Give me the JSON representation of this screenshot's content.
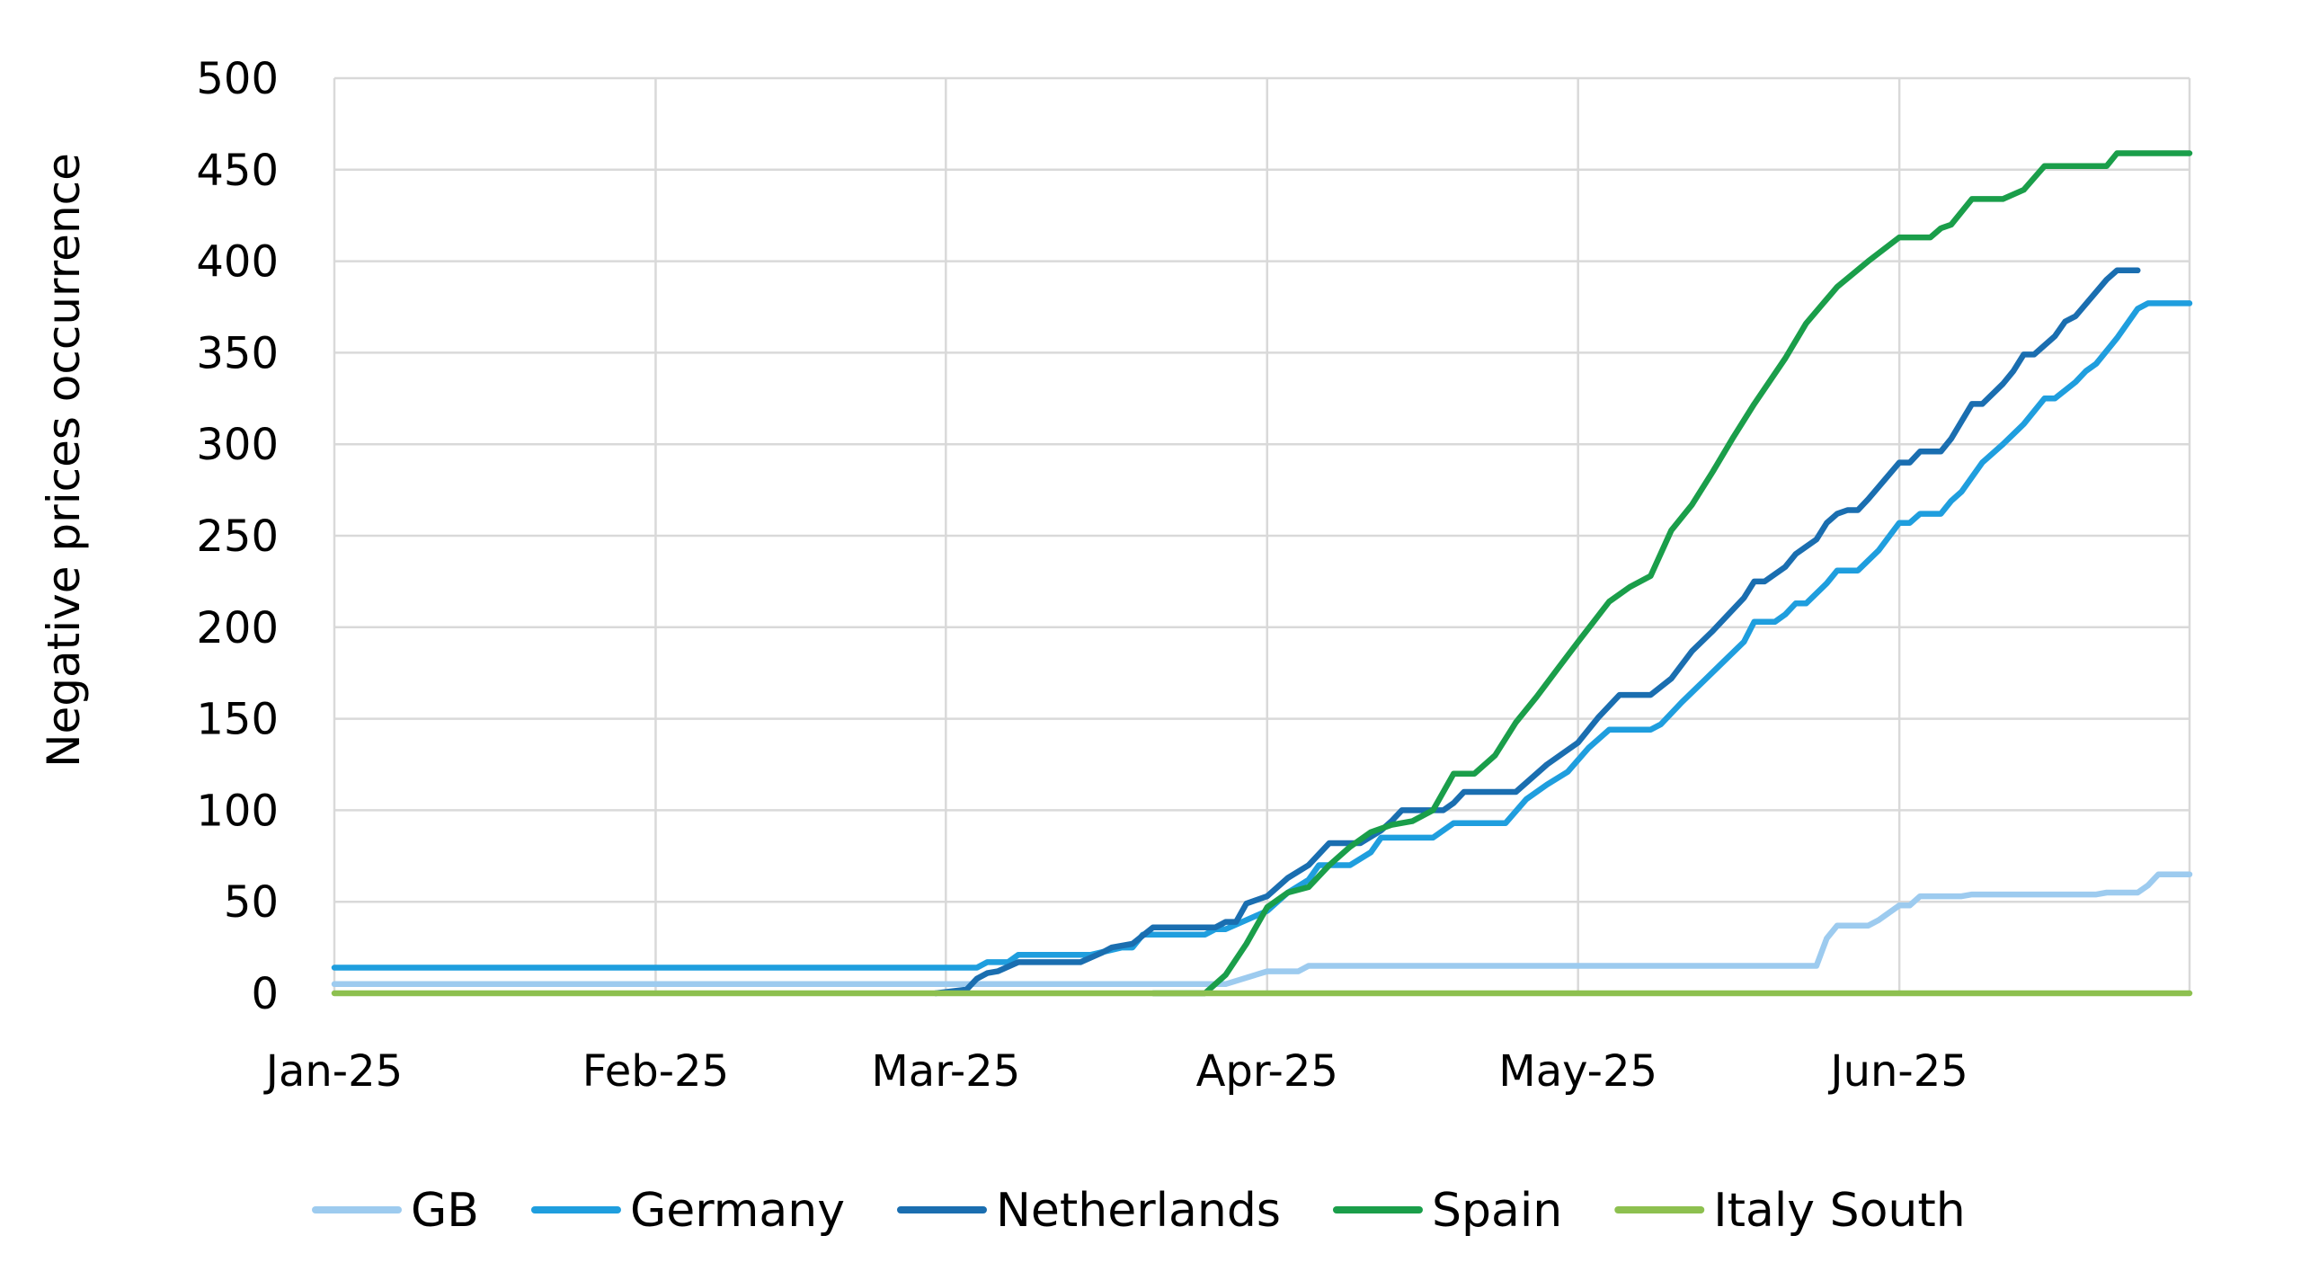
{
  "chart_data": {
    "type": "line",
    "title": "",
    "xlabel": "",
    "ylabel": "Negative prices occurrence",
    "ylim": [
      0,
      500
    ],
    "yticks": [
      "0",
      "50",
      "100",
      "150",
      "200",
      "250",
      "300",
      "350",
      "400",
      "450",
      "500"
    ],
    "xlim": [
      "2025-01-01",
      "2025-06-29"
    ],
    "xticks": [
      {
        "date": "2025-01-01",
        "label": "Jan-25"
      },
      {
        "date": "2025-02-01",
        "label": "Feb-25"
      },
      {
        "date": "2025-03-01",
        "label": "Mar-25"
      },
      {
        "date": "2025-04-01",
        "label": "Apr-25"
      },
      {
        "date": "2025-05-01",
        "label": "May-25"
      },
      {
        "date": "2025-06-01",
        "label": "Jun-25"
      }
    ],
    "grid": true,
    "legend_position": "bottom",
    "series": [
      {
        "name": "GB",
        "color": "#9dcbef",
        "points": [
          [
            "2025-01-01",
            5
          ],
          [
            "2025-03-01",
            5
          ],
          [
            "2025-03-15",
            5
          ],
          [
            "2025-03-28",
            5
          ],
          [
            "2025-04-01",
            12
          ],
          [
            "2025-04:04",
            12
          ],
          [
            "2025-04-05",
            15
          ],
          [
            "2025-05-01",
            15
          ],
          [
            "2025-05-24",
            15
          ],
          [
            "2025-05-25",
            30
          ],
          [
            "2025-05-26",
            37
          ],
          [
            "2025-05-29",
            37
          ],
          [
            "2025-05-30",
            40
          ],
          [
            "2025-06-01",
            48
          ],
          [
            "2025-06-02",
            48
          ],
          [
            "2025-06-03",
            53
          ],
          [
            "2025-06-07",
            53
          ],
          [
            "2025-06-08",
            54
          ],
          [
            "2025-06-20",
            54
          ],
          [
            "2025-06-21",
            55
          ],
          [
            "2025-06-24",
            55
          ],
          [
            "2025-06-25",
            59
          ],
          [
            "2025-06-26",
            65
          ],
          [
            "2025-06-29",
            65
          ]
        ]
      },
      {
        "name": "Germany",
        "color": "#1f9ede",
        "points": [
          [
            "2025-01-01",
            14
          ],
          [
            "2025-03-04",
            14
          ],
          [
            "2025-03-05",
            17
          ],
          [
            "2025-03-07",
            17
          ],
          [
            "2025-03-08",
            21
          ],
          [
            "2025-03-15",
            21
          ],
          [
            "2025-03-18",
            25
          ],
          [
            "2025-03-19",
            25
          ],
          [
            "2025-03-20",
            32
          ],
          [
            "2025-03-26",
            32
          ],
          [
            "2025-03-27",
            35
          ],
          [
            "2025-03-28",
            35
          ],
          [
            "2025-04-01",
            45
          ],
          [
            "2025-04-03",
            55
          ],
          [
            "2025-04-05",
            62
          ],
          [
            "2025-04-06",
            70
          ],
          [
            "2025-04-09",
            70
          ],
          [
            "2025-04-11",
            77
          ],
          [
            "2025-04-12",
            85
          ],
          [
            "2025-04-17",
            85
          ],
          [
            "2025-04-19",
            93
          ],
          [
            "2025-04-24",
            93
          ],
          [
            "2025-04-26",
            106
          ],
          [
            "2025-04-28",
            114
          ],
          [
            "2025-04-30",
            121
          ],
          [
            "2025-05-02",
            134
          ],
          [
            "2025-05-04",
            144
          ],
          [
            "2025-05-08",
            144
          ],
          [
            "2025-05-09",
            147
          ],
          [
            "2025-05-11",
            159
          ],
          [
            "2025-05-13",
            170
          ],
          [
            "2025-05-15",
            181
          ],
          [
            "2025-05-17",
            192
          ],
          [
            "2025-05-18",
            203
          ],
          [
            "2025-05-20",
            203
          ],
          [
            "2025-05-21",
            207
          ],
          [
            "2025-05-22",
            213
          ],
          [
            "2025-05-23",
            213
          ],
          [
            "2025-05-25",
            224
          ],
          [
            "2025-05-26",
            231
          ],
          [
            "2025-05-28",
            231
          ],
          [
            "2025-05-30",
            242
          ],
          [
            "2025-06-01",
            257
          ],
          [
            "2025-06-02",
            257
          ],
          [
            "2025-06-03",
            262
          ],
          [
            "2025-06-05",
            262
          ],
          [
            "2025-06-06",
            269
          ],
          [
            "2025-06-07",
            274
          ],
          [
            "2025-06-09",
            290
          ],
          [
            "2025-06-11",
            300
          ],
          [
            "2025-06-13",
            311
          ],
          [
            "2025-06-15",
            325
          ],
          [
            "2025-06-16",
            325
          ],
          [
            "2025-06-18",
            334
          ],
          [
            "2025-06-19",
            340
          ],
          [
            "2025-06-20",
            344
          ],
          [
            "2025-06-22",
            358
          ],
          [
            "2025-06-24",
            374
          ],
          [
            "2025-06-25",
            377
          ],
          [
            "2025-06-29",
            377
          ]
        ]
      },
      {
        "name": "Netherlands",
        "color": "#1a6eb0",
        "points": [
          [
            "2025-02-28",
            0
          ],
          [
            "2025-03-03",
            2
          ],
          [
            "2025-03-04",
            8
          ],
          [
            "2025-03-05",
            11
          ],
          [
            "2025-03-06",
            12
          ],
          [
            "2025-03-08",
            17
          ],
          [
            "2025-03-14",
            17
          ],
          [
            "2025-03-16",
            22
          ],
          [
            "2025-03-17",
            25
          ],
          [
            "2025-03-19",
            27
          ],
          [
            "2025-03-21",
            36
          ],
          [
            "2025-03-27",
            36
          ],
          [
            "2025-03-28",
            39
          ],
          [
            "2025-03-29",
            39
          ],
          [
            "2025-03-30",
            49
          ],
          [
            "2025-04-01",
            53
          ],
          [
            "2025-04-03",
            63
          ],
          [
            "2025-04-05",
            70
          ],
          [
            "2025-04-07",
            82
          ],
          [
            "2025-04-10",
            82
          ],
          [
            "2025-04-12",
            89
          ],
          [
            "2025-04-13",
            94
          ],
          [
            "2025-04-14",
            100
          ],
          [
            "2025-04-18",
            100
          ],
          [
            "2025-04-19",
            104
          ],
          [
            "2025-04-20",
            110
          ],
          [
            "2025-04-25",
            110
          ],
          [
            "2025-04-28",
            125
          ],
          [
            "2025-05-01",
            137
          ],
          [
            "2025-05-03",
            151
          ],
          [
            "2025-05-05",
            163
          ],
          [
            "2025-05-08",
            163
          ],
          [
            "2025-05-10",
            172
          ],
          [
            "2025-05-12",
            187
          ],
          [
            "2025-05-14",
            198
          ],
          [
            "2025-05-17",
            216
          ],
          [
            "2025-05-18",
            225
          ],
          [
            "2025-05-19",
            225
          ],
          [
            "2025-05-21",
            233
          ],
          [
            "2025-05-22",
            240
          ],
          [
            "2025-05-23",
            244
          ],
          [
            "2025-05-24",
            248
          ],
          [
            "2025-05-25",
            257
          ],
          [
            "2025-05-26",
            262
          ],
          [
            "2025-05-27",
            264
          ],
          [
            "2025-05-28",
            264
          ],
          [
            "2025-05-29",
            270
          ],
          [
            "2025-06-01",
            290
          ],
          [
            "2025-06-02",
            290
          ],
          [
            "2025-06-03",
            296
          ],
          [
            "2025-06-05",
            296
          ],
          [
            "2025-06-06",
            303
          ],
          [
            "2025-06-08",
            322
          ],
          [
            "2025-06-09",
            322
          ],
          [
            "2025-06-11",
            333
          ],
          [
            "2025-06-12",
            340
          ],
          [
            "2025-06-13",
            349
          ],
          [
            "2025-06-14",
            349
          ],
          [
            "2025-06-16",
            359
          ],
          [
            "2025-06-17",
            367
          ],
          [
            "2025-06-18",
            370
          ],
          [
            "2025-06-21",
            390
          ],
          [
            "2025-06-22",
            395
          ],
          [
            "2025-06-24",
            395
          ]
        ]
      },
      {
        "name": "Spain",
        "color": "#1a9e4a",
        "points": [
          [
            "2025-03-21",
            0
          ],
          [
            "2025-03-26",
            0
          ],
          [
            "2025-03-28",
            10
          ],
          [
            "2025-03-30",
            27
          ],
          [
            "2025-04-01",
            47
          ],
          [
            "2025-04-02",
            51
          ],
          [
            "2025-04-03",
            55
          ],
          [
            "2025-04-05",
            58
          ],
          [
            "2025-04-07",
            70
          ],
          [
            "2025-04-09",
            80
          ],
          [
            "2025-04-11",
            88
          ],
          [
            "2025-04-13",
            92
          ],
          [
            "2025-04-15",
            94
          ],
          [
            "2025-04-17",
            100
          ],
          [
            "2025-04-19",
            120
          ],
          [
            "2025-04-21",
            120
          ],
          [
            "2025-04-23",
            130
          ],
          [
            "2025-04-25",
            148
          ],
          [
            "2025-04-27",
            162
          ],
          [
            "2025-04-29",
            177
          ],
          [
            "2025-05-01",
            192
          ],
          [
            "2025-05-04",
            214
          ],
          [
            "2025-05-06",
            222
          ],
          [
            "2025-05-08",
            228
          ],
          [
            "2025-05-10",
            253
          ],
          [
            "2025-05-12",
            267
          ],
          [
            "2025-05-14",
            285
          ],
          [
            "2025-05-16",
            304
          ],
          [
            "2025-05-18",
            322
          ],
          [
            "2025-05-21",
            347
          ],
          [
            "2025-05-23",
            366
          ],
          [
            "2025-05-26",
            386
          ],
          [
            "2025-05-29",
            400
          ],
          [
            "2025-06-01",
            413
          ],
          [
            "2025-06-04",
            413
          ],
          [
            "2025-06-05",
            418
          ],
          [
            "2025-06-06",
            420
          ],
          [
            "2025-06-08",
            434
          ],
          [
            "2025-06-11",
            434
          ],
          [
            "2025-06-13",
            439
          ],
          [
            "2025-06-15",
            452
          ],
          [
            "2025-06-21",
            452
          ],
          [
            "2025-06-22",
            459
          ],
          [
            "2025-06-29",
            459
          ]
        ]
      },
      {
        "name": "Italy South",
        "color": "#8dc04f",
        "points": [
          [
            "2025-01-01",
            0
          ],
          [
            "2025-06-29",
            0
          ]
        ]
      }
    ]
  }
}
